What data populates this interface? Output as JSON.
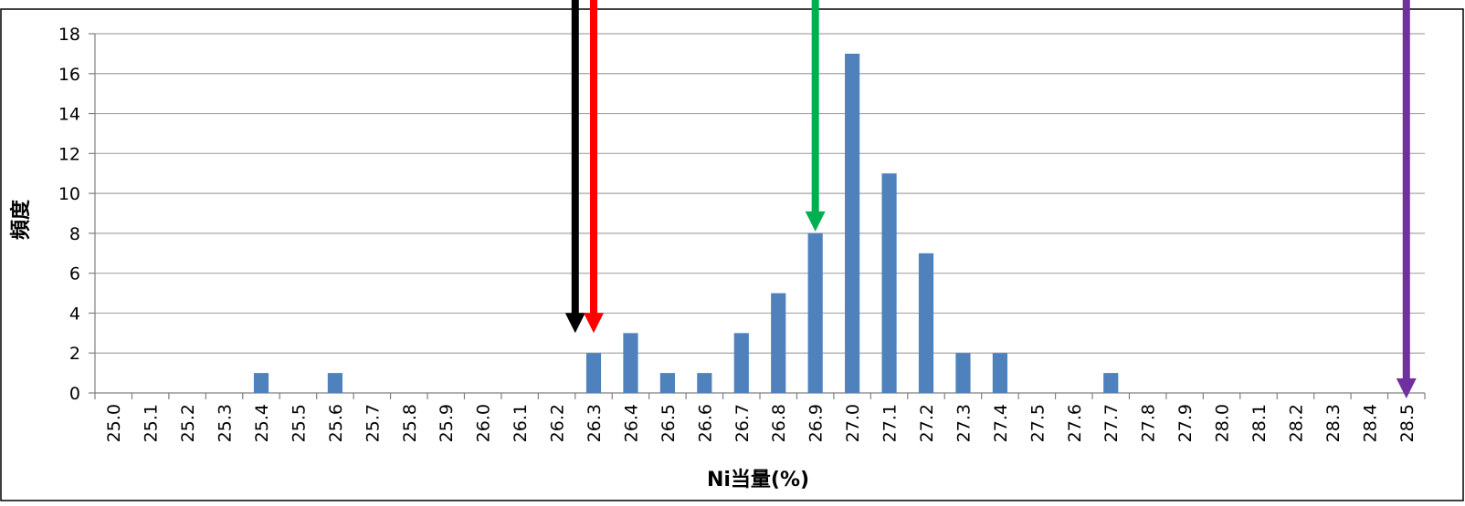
{
  "chart_data": {
    "type": "bar",
    "title": "",
    "xlabel": "Ni当量(%)",
    "ylabel": "頻度",
    "ylim": [
      0,
      18
    ],
    "yticks": [
      0,
      2,
      4,
      6,
      8,
      10,
      12,
      14,
      16,
      18
    ],
    "grid": true,
    "categories": [
      "25.0",
      "25.1",
      "25.2",
      "25.3",
      "25.4",
      "25.5",
      "25.6",
      "25.7",
      "25.8",
      "25.9",
      "26.0",
      "26.1",
      "26.2",
      "26.3",
      "26.4",
      "26.5",
      "26.6",
      "26.7",
      "26.8",
      "26.9",
      "27.0",
      "27.1",
      "27.2",
      "27.3",
      "27.4",
      "27.5",
      "27.6",
      "27.7",
      "27.8",
      "27.9",
      "28.0",
      "28.1",
      "28.2",
      "28.3",
      "28.4",
      "28.5"
    ],
    "values": [
      0,
      0,
      0,
      0,
      1,
      0,
      1,
      0,
      0,
      0,
      0,
      0,
      0,
      2,
      3,
      1,
      1,
      3,
      5,
      8,
      17,
      11,
      7,
      2,
      2,
      0,
      0,
      1,
      0,
      0,
      0,
      0,
      0,
      0,
      0,
      0
    ],
    "bar_color": "#4f81bd",
    "annotations": [
      {
        "type": "arrow",
        "x": 26.25,
        "color": "#000000"
      },
      {
        "type": "arrow",
        "x": 26.3,
        "color": "#ff0000"
      },
      {
        "type": "arrow",
        "x": 26.9,
        "color": "#00b050"
      },
      {
        "type": "arrow",
        "x": 28.5,
        "color": "#7030a0"
      }
    ]
  }
}
